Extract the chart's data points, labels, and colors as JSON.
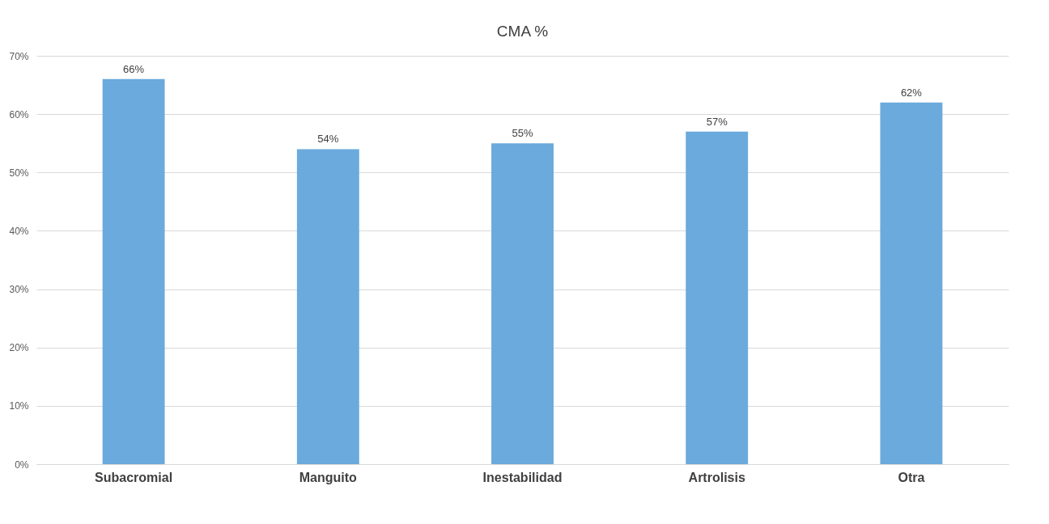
{
  "chart_data": {
    "type": "bar",
    "title": "CMA %",
    "categories": [
      "Subacromial",
      "Manguito",
      "Inestabilidad",
      "Artrolisis",
      "Otra"
    ],
    "values": [
      66,
      54,
      55,
      57,
      62
    ],
    "value_labels": [
      "66%",
      "54%",
      "55%",
      "57%",
      "62%"
    ],
    "color": "#6aaadc",
    "ylim": [
      0,
      70
    ],
    "yticks": [
      {
        "value": 0,
        "label": "0%"
      },
      {
        "value": 10,
        "label": "10%"
      },
      {
        "value": 20,
        "label": "20%"
      },
      {
        "value": 30,
        "label": "30%"
      },
      {
        "value": 40,
        "label": "40%"
      },
      {
        "value": 50,
        "label": "50%"
      },
      {
        "value": 60,
        "label": "60%"
      },
      {
        "value": 70,
        "label": "70%"
      }
    ],
    "grid": "y"
  }
}
